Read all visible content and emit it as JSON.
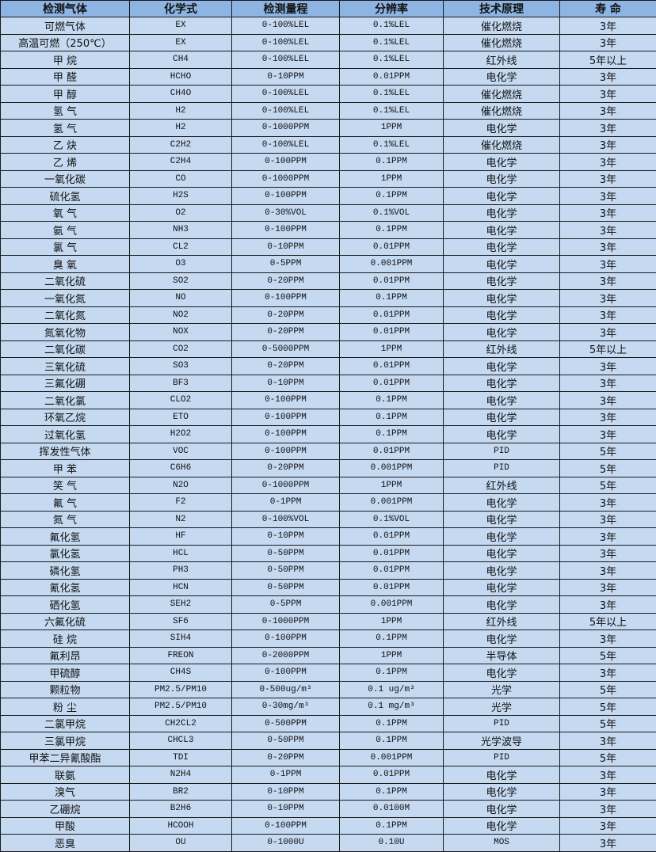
{
  "colors": {
    "header_bg": "#8DB4E2",
    "row_bg": "#C5D9F1",
    "border": "#1a1a1a"
  },
  "headers": [
    "检测气体",
    "化学式",
    "检测量程",
    "分辨率",
    "技术原理",
    "寿 命"
  ],
  "rows": [
    [
      "可燃气体",
      "EX",
      "0-100%LEL",
      "0.1%LEL",
      "催化燃烧",
      "3年"
    ],
    [
      "高温可燃（250℃）",
      "EX",
      "0-100%LEL",
      "0.1%LEL",
      "催化燃烧",
      "3年"
    ],
    [
      "甲 烷",
      "CH4",
      "0-100%LEL",
      "0.1%LEL",
      "红外线",
      "5年以上"
    ],
    [
      "甲 醛",
      "HCHO",
      "0-10PPM",
      "0.01PPM",
      "电化学",
      "3年"
    ],
    [
      "甲 醇",
      "CH4O",
      "0-100%LEL",
      "0.1%LEL",
      "催化燃烧",
      "3年"
    ],
    [
      "氢 气",
      "H2",
      "0-100%LEL",
      "0.1%LEL",
      "催化燃烧",
      "3年"
    ],
    [
      "氢 气",
      "H2",
      "0-1000PPM",
      "1PPM",
      "电化学",
      "3年"
    ],
    [
      "乙 炔",
      "C2H2",
      "0-100%LEL",
      "0.1%LEL",
      "催化燃烧",
      "3年"
    ],
    [
      "乙 烯",
      "C2H4",
      "0-100PPM",
      "0.1PPM",
      "电化学",
      "3年"
    ],
    [
      "一氧化碳",
      "CO",
      "0-1000PPM",
      "1PPM",
      "电化学",
      "3年"
    ],
    [
      "硫化氢",
      "H2S",
      "0-100PPM",
      "0.1PPM",
      "电化学",
      "3年"
    ],
    [
      "氧 气",
      "O2",
      "0-30%VOL",
      "0.1%VOL",
      "电化学",
      "3年"
    ],
    [
      "氨 气",
      "NH3",
      "0-100PPM",
      "0.1PPM",
      "电化学",
      "3年"
    ],
    [
      "氯 气",
      "CL2",
      "0-10PPM",
      "0.01PPM",
      "电化学",
      "3年"
    ],
    [
      "臭 氧",
      "O3",
      "0-5PPM",
      "0.001PPM",
      "电化学",
      "3年"
    ],
    [
      "二氧化硫",
      "SO2",
      "0-20PPM",
      "0.01PPM",
      "电化学",
      "3年"
    ],
    [
      "一氧化氮",
      "NO",
      "0-100PPM",
      "0.1PPM",
      "电化学",
      "3年"
    ],
    [
      "二氧化氮",
      "NO2",
      "0-20PPM",
      "0.01PPM",
      "电化学",
      "3年"
    ],
    [
      "氮氧化物",
      "NOX",
      "0-20PPM",
      "0.01PPM",
      "电化学",
      "3年"
    ],
    [
      "二氧化碳",
      "CO2",
      "0-5000PPM",
      "1PPM",
      "红外线",
      "5年以上"
    ],
    [
      "三氧化硫",
      "SO3",
      "0-20PPM",
      "0.01PPM",
      "电化学",
      "3年"
    ],
    [
      "三氟化硼",
      "BF3",
      "0-10PPM",
      "0.01PPM",
      "电化学",
      "3年"
    ],
    [
      "二氧化氯",
      "CLO2",
      "0-100PPM",
      "0.1PPM",
      "电化学",
      "3年"
    ],
    [
      "环氧乙烷",
      "ETO",
      "0-100PPM",
      "0.1PPM",
      "电化学",
      "3年"
    ],
    [
      "过氧化氢",
      "H2O2",
      "0-100PPM",
      "0.1PPM",
      "电化学",
      "3年"
    ],
    [
      "挥发性气体",
      "VOC",
      "0-100PPM",
      "0.01PPM",
      "PID",
      "5年"
    ],
    [
      "甲 苯",
      "C6H6",
      "0-20PPM",
      "0.001PPM",
      "PID",
      "5年"
    ],
    [
      "笑 气",
      "N2O",
      "0-1000PPM",
      "1PPM",
      "红外线",
      "5年"
    ],
    [
      "氟 气",
      "F2",
      "0-1PPM",
      "0.001PPM",
      "电化学",
      "3年"
    ],
    [
      "氮 气",
      "N2",
      "0-100%VOL",
      "0.1%VOL",
      "电化学",
      "3年"
    ],
    [
      "氟化氢",
      "HF",
      "0-10PPM",
      "0.01PPM",
      "电化学",
      "3年"
    ],
    [
      "氯化氢",
      "HCL",
      "0-50PPM",
      "0.01PPM",
      "电化学",
      "3年"
    ],
    [
      "磷化氢",
      "PH3",
      "0-50PPM",
      "0.01PPM",
      "电化学",
      "3年"
    ],
    [
      "氰化氢",
      "HCN",
      "0-50PPM",
      "0.01PPM",
      "电化学",
      "3年"
    ],
    [
      "硒化氢",
      "SEH2",
      "0-5PPM",
      "0.001PPM",
      "电化学",
      "3年"
    ],
    [
      "六氟化硫",
      "SF6",
      "0-1000PPM",
      "1PPM",
      "红外线",
      "5年以上"
    ],
    [
      "硅 烷",
      "SIH4",
      "0-100PPM",
      "0.1PPM",
      "电化学",
      "3年"
    ],
    [
      "氟利昂",
      "FREON",
      "0-2000PPM",
      "1PPM",
      "半导体",
      "5年"
    ],
    [
      "甲硫醇",
      "CH4S",
      "0-100PPM",
      "0.1PPM",
      "电化学",
      "3年"
    ],
    [
      "颗粒物",
      "PM2.5/PM10",
      "0-500ug/m³",
      "0.1 ug/m³",
      "光学",
      "5年"
    ],
    [
      "粉 尘",
      "PM2.5/PM10",
      "0-30mg/m³",
      "0.1 mg/m³",
      "光学",
      "5年"
    ],
    [
      "二氯甲烷",
      "CH2CL2",
      "0-500PPM",
      "0.1PPM",
      "PID",
      "5年"
    ],
    [
      "三氯甲烷",
      "CHCL3",
      "0-50PPM",
      "0.1PPM",
      "光学波导",
      "3年"
    ],
    [
      "甲苯二异氰酸酯",
      "TDI",
      "0-20PPM",
      "0.001PPM",
      "PID",
      "5年"
    ],
    [
      "联氨",
      "N2H4",
      "0-1PPM",
      "0.01PPM",
      "电化学",
      "3年"
    ],
    [
      "溴气",
      "BR2",
      "0-10PPM",
      "0.1PPM",
      "电化学",
      "3年"
    ],
    [
      "乙硼烷",
      "B2H6",
      "0-10PPM",
      "0.0100M",
      "电化学",
      "3年"
    ],
    [
      "甲酸",
      "HCOOH",
      "0-100PPM",
      "0.1PPM",
      "电化学",
      "3年"
    ],
    [
      "恶臭",
      "OU",
      "0-1000U",
      "0.10U",
      "MOS",
      "3年"
    ]
  ]
}
